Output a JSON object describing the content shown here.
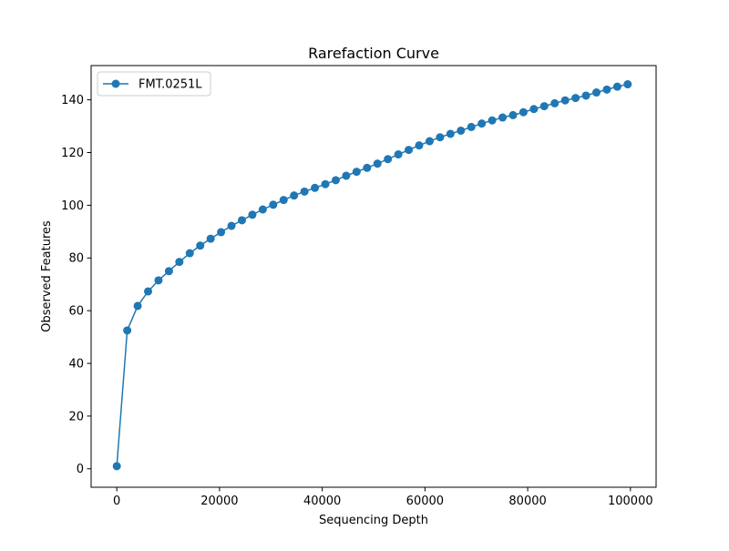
{
  "chart_data": {
    "type": "line",
    "title": "Rarefaction Curve",
    "xlabel": "Sequencing Depth",
    "ylabel": "Observed Features",
    "xlim": [
      -5000,
      105000
    ],
    "ylim": [
      -7,
      153
    ],
    "xticks": [
      0,
      20000,
      40000,
      60000,
      80000,
      100000
    ],
    "xtick_labels": [
      "0",
      "20000",
      "40000",
      "60000",
      "80000",
      "100000"
    ],
    "yticks": [
      0,
      20,
      40,
      60,
      80,
      100,
      120,
      140
    ],
    "ytick_labels": [
      "0",
      "20",
      "40",
      "60",
      "80",
      "100",
      "120",
      "140"
    ],
    "grid": false,
    "legend_position": "top-left",
    "color": "#1f77b4",
    "marker": "circle",
    "series": [
      {
        "name": "FMT.0251L",
        "x": [
          0,
          2030,
          4060,
          6090,
          8120,
          10150,
          12180,
          14210,
          16240,
          18270,
          20300,
          22330,
          24360,
          26390,
          28420,
          30450,
          32480,
          34510,
          36540,
          38570,
          40600,
          42630,
          44660,
          46690,
          48720,
          50750,
          52780,
          54810,
          56840,
          58870,
          60900,
          62930,
          64960,
          66990,
          69020,
          71050,
          73080,
          75110,
          77140,
          79170,
          81200,
          83230,
          85260,
          87290,
          89320,
          91350,
          93380,
          95410,
          97440,
          99470
        ],
        "y": [
          1,
          52.5,
          61.8,
          67.3,
          71.5,
          75.0,
          78.5,
          81.8,
          84.7,
          87.3,
          89.8,
          92.2,
          94.3,
          96.4,
          98.4,
          100.2,
          102.0,
          103.7,
          105.2,
          106.6,
          108.0,
          109.5,
          111.2,
          112.7,
          114.2,
          115.8,
          117.5,
          119.3,
          121.0,
          122.7,
          124.3,
          125.8,
          127.1,
          128.3,
          129.7,
          131.0,
          132.2,
          133.3,
          134.2,
          135.3,
          136.5,
          137.6,
          138.7,
          139.8,
          140.7,
          141.6,
          142.8,
          143.9,
          145.0,
          145.9
        ]
      }
    ]
  }
}
